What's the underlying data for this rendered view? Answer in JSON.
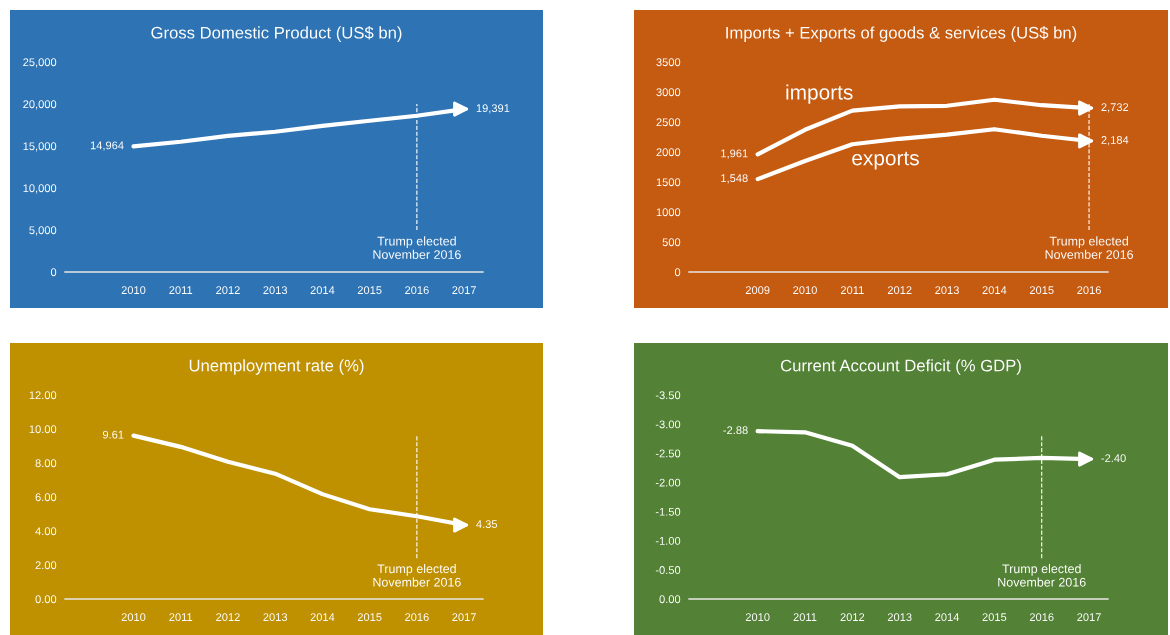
{
  "chart_data": [
    {
      "type": "line",
      "title": "Gross Domestic Product (US$ bn)",
      "categories": [
        "2010",
        "2011",
        "2012",
        "2013",
        "2014",
        "2015",
        "2016",
        "2017"
      ],
      "series": [
        {
          "color": "#ffffff",
          "values": [
            14964,
            15500,
            16200,
            16700,
            17400,
            18000,
            18600,
            19391
          ],
          "value_labels": [
            "14,964",
            null,
            null,
            null,
            null,
            null,
            null,
            "19,391"
          ]
        }
      ],
      "ylim": [
        0,
        25000
      ],
      "yticks": [
        {
          "value": 0,
          "label": "0"
        },
        {
          "value": 5000,
          "label": "5,000"
        },
        {
          "value": 10000,
          "label": "10,000"
        },
        {
          "value": 15000,
          "label": "15,000"
        },
        {
          "value": 20000,
          "label": "20,000"
        },
        {
          "value": 25000,
          "label": "25,000"
        }
      ],
      "ref_lines": [
        {
          "axis": "x",
          "value": "2016",
          "label": "Trump elected\nNovember 2016",
          "color": "#ffffff",
          "line_style": "dashed"
        }
      ],
      "grid": false,
      "legend": false,
      "marker": "none",
      "line_style": "solid"
    },
    {
      "type": "line",
      "title": "Imports + Exports of goods & services (US$ bn)",
      "categories": [
        "2009",
        "2010",
        "2011",
        "2012",
        "2013",
        "2014",
        "2015",
        "2016"
      ],
      "series": [
        {
          "name": "imports",
          "color": "#ffffff",
          "values": [
            1961,
            2370,
            2690,
            2760,
            2770,
            2870,
            2780,
            2732
          ],
          "value_labels": [
            "1,961",
            null,
            null,
            null,
            null,
            null,
            null,
            "2,732"
          ]
        },
        {
          "name": "exports",
          "color": "#ffffff",
          "values": [
            1548,
            1850,
            2130,
            2220,
            2290,
            2380,
            2270,
            2184
          ],
          "value_labels": [
            "1,548",
            null,
            null,
            null,
            null,
            null,
            null,
            "2,184"
          ]
        }
      ],
      "ylim": [
        0,
        3500
      ],
      "yticks": [
        0,
        500,
        1000,
        1500,
        2000,
        2500,
        3000,
        3500
      ],
      "ref_lines": [
        {
          "axis": "x",
          "value": "2016",
          "label": "Trump elected\nNovember 2016",
          "color": "#ffffff",
          "line_style": "dashed"
        }
      ],
      "grid": false,
      "legend": false,
      "marker": "none",
      "line_style": "solid"
    },
    {
      "type": "line",
      "title": "Unemployment rate (%)",
      "categories": [
        "2010",
        "2011",
        "2012",
        "2013",
        "2014",
        "2015",
        "2016",
        "2017"
      ],
      "series": [
        {
          "color": "#ffffff",
          "values": [
            9.61,
            8.95,
            8.07,
            7.37,
            6.17,
            5.28,
            4.87,
            4.35
          ],
          "value_labels": [
            "9.61",
            null,
            null,
            null,
            null,
            null,
            null,
            "4.35"
          ]
        }
      ],
      "ylim": [
        0,
        12
      ],
      "yticks": [
        {
          "value": 0,
          "label": "0.00"
        },
        {
          "value": 2,
          "label": "2.00"
        },
        {
          "value": 4,
          "label": "4.00"
        },
        {
          "value": 6,
          "label": "6.00"
        },
        {
          "value": 8,
          "label": "8.00"
        },
        {
          "value": 10,
          "label": "10.00"
        },
        {
          "value": 12,
          "label": "12.00"
        }
      ],
      "ref_lines": [
        {
          "axis": "x",
          "value": "2016",
          "label": "Trump elected\nNovember 2016",
          "color": "#ffffff",
          "line_style": "dashed"
        }
      ],
      "grid": false,
      "legend": false,
      "marker": "none",
      "line_style": "solid"
    },
    {
      "type": "line",
      "title": "Current Account Deficit (% GDP)",
      "categories": [
        "2010",
        "2011",
        "2012",
        "2013",
        "2014",
        "2015",
        "2016",
        "2017"
      ],
      "series": [
        {
          "color": "#ffffff",
          "values": [
            -2.88,
            -2.86,
            -2.63,
            -2.09,
            -2.14,
            -2.39,
            -2.42,
            -2.4
          ],
          "value_labels": [
            "-2.88",
            null,
            null,
            null,
            null,
            null,
            null,
            "-2.40"
          ]
        }
      ],
      "ylim": [
        0,
        -3.5
      ],
      "yticks": [
        {
          "value": 0,
          "label": "0.00"
        },
        {
          "value": -0.5,
          "label": "-0.50"
        },
        {
          "value": -1,
          "label": "-1.00"
        },
        {
          "value": -1.5,
          "label": "-1.50"
        },
        {
          "value": -2,
          "label": "-2.00"
        },
        {
          "value": -2.5,
          "label": "-2.50"
        },
        {
          "value": -3,
          "label": "-3.00"
        },
        {
          "value": -3.5,
          "label": "-3.50"
        }
      ],
      "ref_lines": [
        {
          "axis": "x",
          "value": "2016",
          "label": "Trump elected\nNovember 2016",
          "color": "#ffffff",
          "line_style": "dashed"
        }
      ],
      "grid": false,
      "legend": false,
      "marker": "none",
      "line_style": "solid"
    }
  ]
}
